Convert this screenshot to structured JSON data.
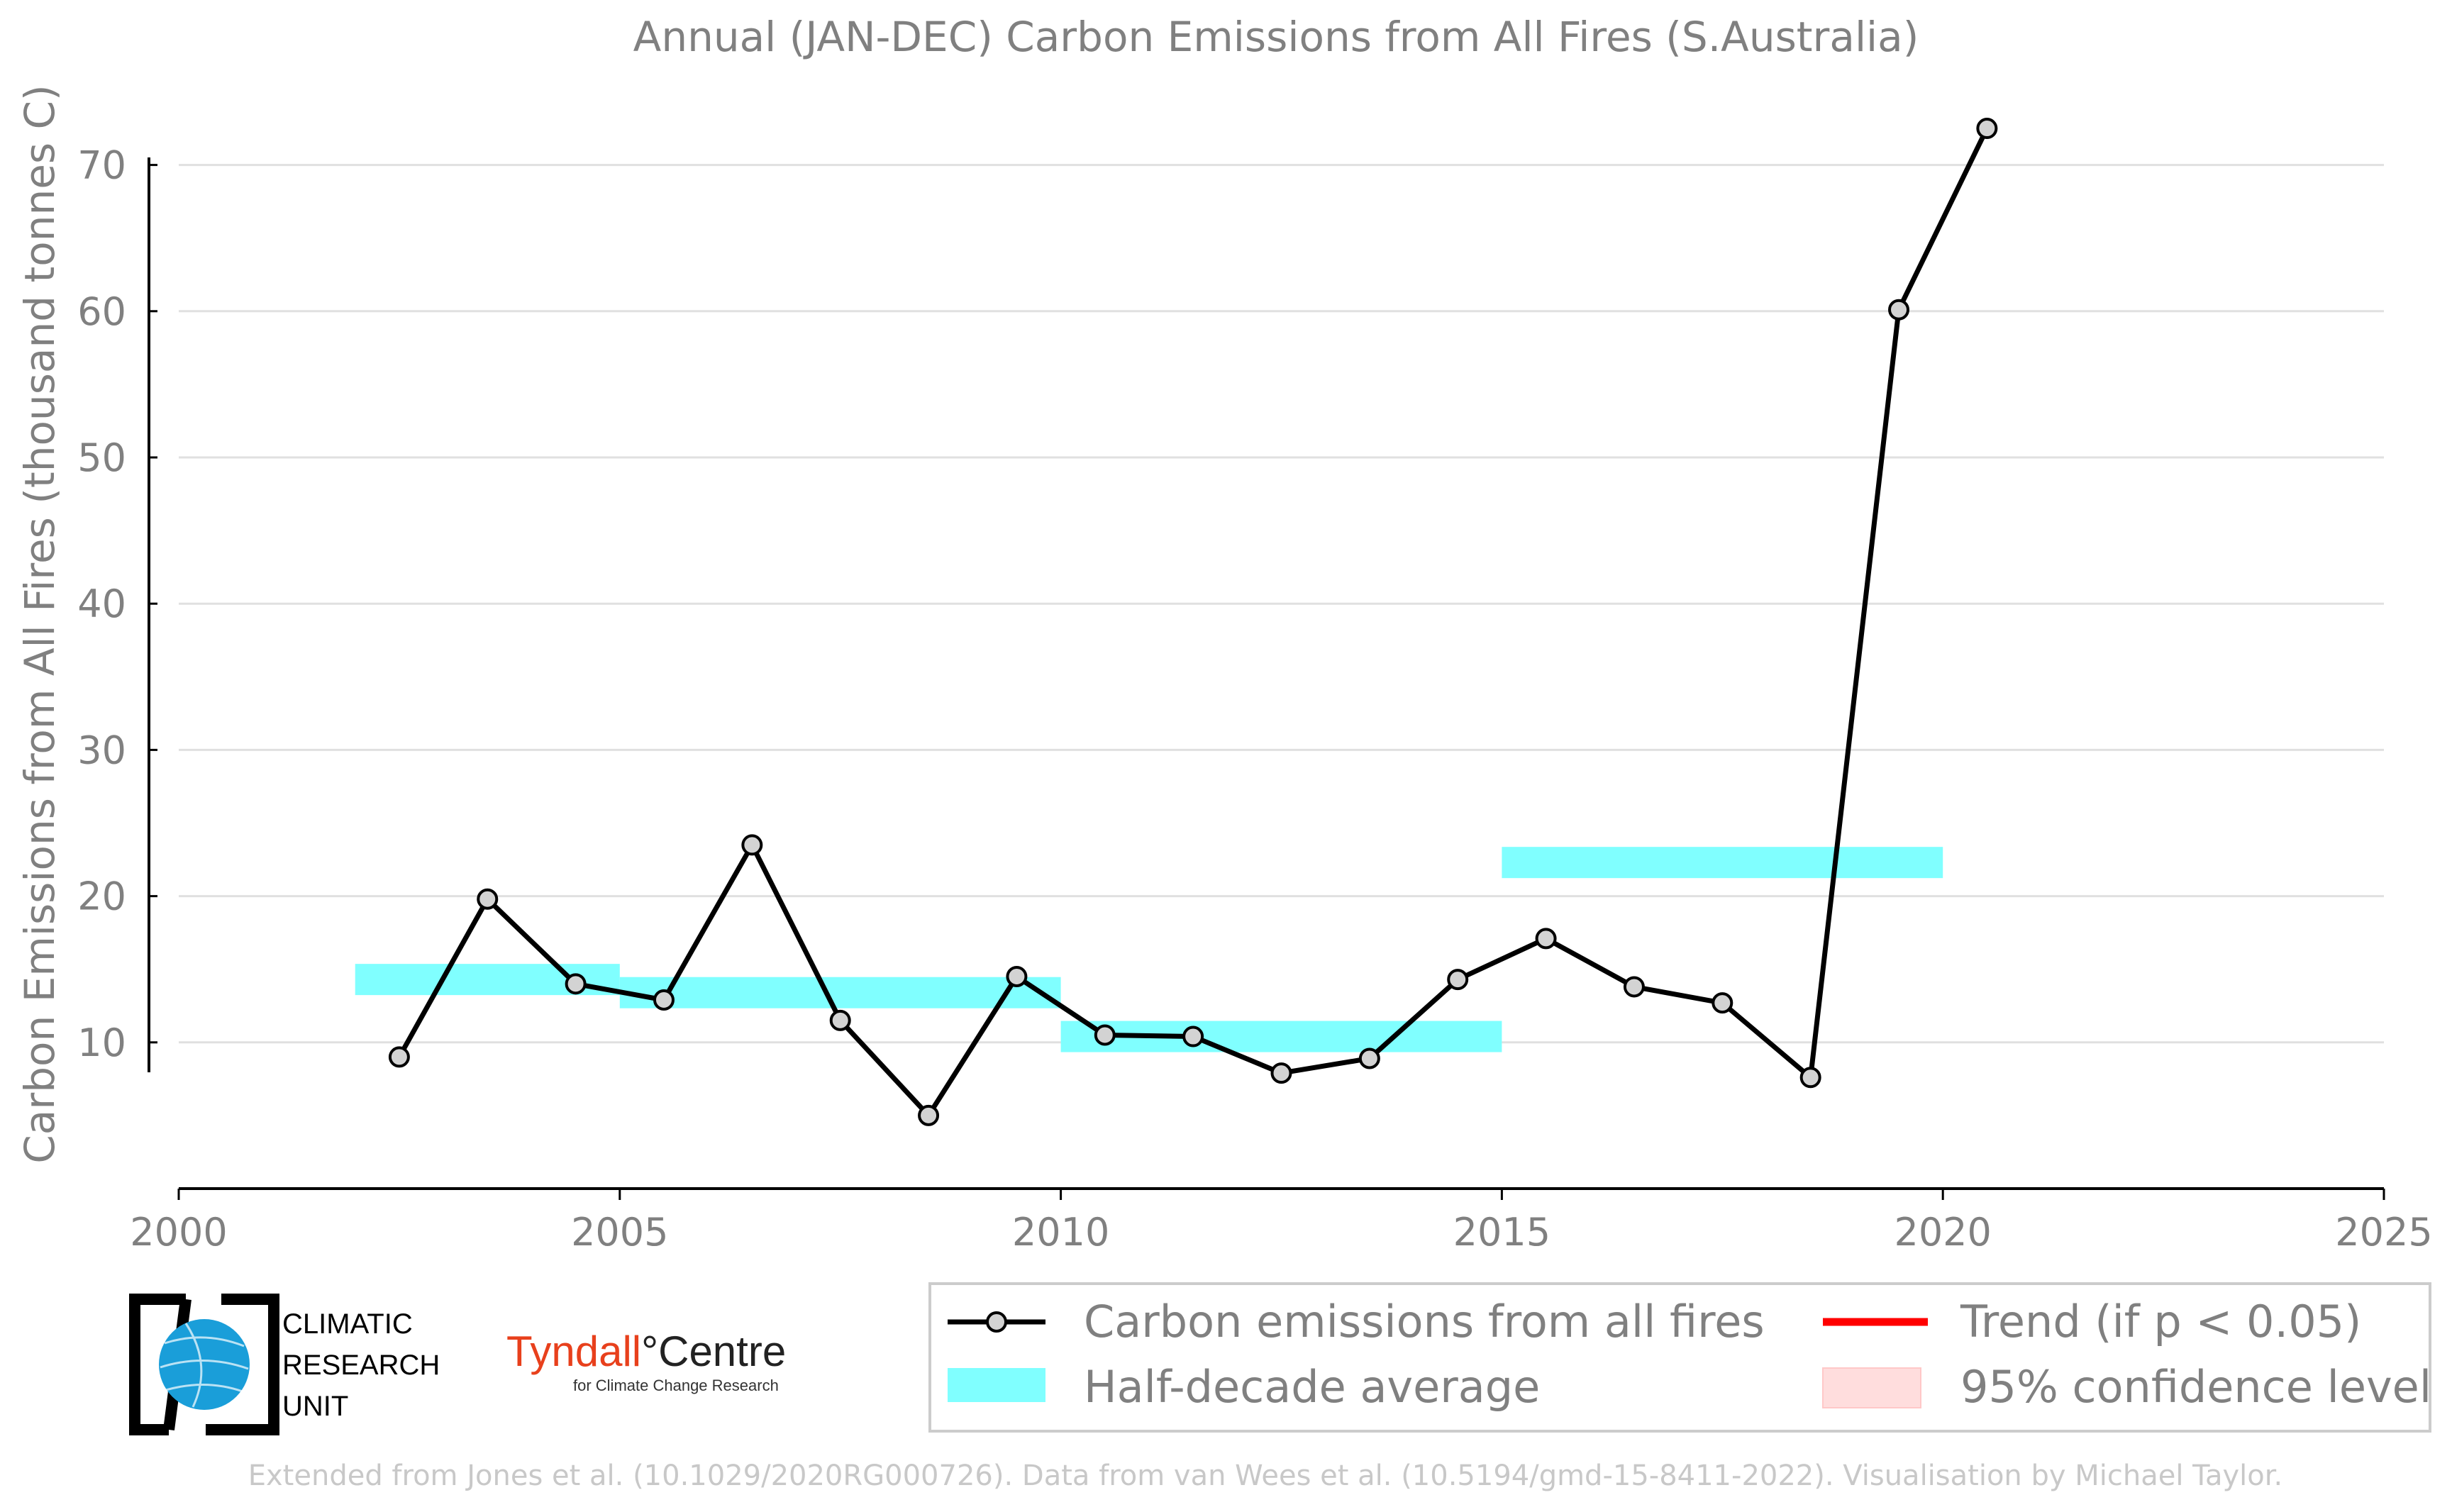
{
  "chart_data": {
    "type": "line",
    "title": "Annual (JAN-DEC) Carbon Emissions from All Fires (S.Australia)",
    "ylabel": "Carbon Emissions from All Fires (thousand tonnes C)",
    "xlabel": "",
    "xlim": [
      2000,
      2025
    ],
    "ylim": [
      0,
      73
    ],
    "x_ticks": [
      2000,
      2005,
      2010,
      2015,
      2020,
      2025
    ],
    "y_ticks": [
      10,
      20,
      30,
      40,
      50,
      60,
      70
    ],
    "grid": "horizontal",
    "series": [
      {
        "name": "Carbon emissions from all fires",
        "color": "#000000",
        "marker_fill": "#d3d3d3",
        "x": [
          2002.5,
          2003.5,
          2004.5,
          2005.5,
          2006.5,
          2007.5,
          2008.5,
          2009.5,
          2010.5,
          2011.5,
          2012.5,
          2013.5,
          2014.5,
          2015.5,
          2016.5,
          2017.5,
          2018.5,
          2019.5,
          2020.5
        ],
        "values": [
          9.0,
          19.8,
          14.0,
          12.9,
          23.5,
          11.5,
          5.0,
          14.5,
          10.5,
          10.4,
          7.9,
          8.9,
          14.3,
          17.1,
          13.8,
          12.7,
          7.6,
          60.1,
          72.5
        ]
      }
    ],
    "half_decade_average": {
      "name": "Half-decade average",
      "color": "#80ffff",
      "segments": [
        {
          "x0": 2002,
          "x1": 2005,
          "y": 14.3
        },
        {
          "x0": 2005,
          "x1": 2010,
          "y": 13.4
        },
        {
          "x0": 2010,
          "x1": 2015,
          "y": 10.4
        },
        {
          "x0": 2015,
          "x1": 2020,
          "y": 22.3
        }
      ]
    },
    "legend": {
      "placement": "bottom-right",
      "entries": [
        {
          "label": "Carbon emissions from all fires",
          "color": "#000000",
          "kind": "line-marker"
        },
        {
          "label": "Trend (if p < 0.05)",
          "color": "#ff0000",
          "kind": "line"
        },
        {
          "label": "Half-decade average",
          "color": "#80ffff",
          "kind": "patch"
        },
        {
          "label": "95% confidence level",
          "color": "#ffdddd",
          "kind": "patch"
        }
      ]
    }
  },
  "logos": {
    "cru": {
      "lines": [
        "CLIMATIC",
        "RESEARCH",
        "UNIT"
      ],
      "icon": "globe-icon",
      "color": "#1a9ed9"
    },
    "tyndall": {
      "name": "Tyndall",
      "degree": "°",
      "centre": "Centre",
      "sub": "for Climate Change Research",
      "color": "#e8401c"
    }
  },
  "footer": "Extended from Jones et al. (10.1029/2020RG000726). Data from van Wees et al. (10.5194/gmd-15-8411-2022). Visualisation by Michael Taylor."
}
